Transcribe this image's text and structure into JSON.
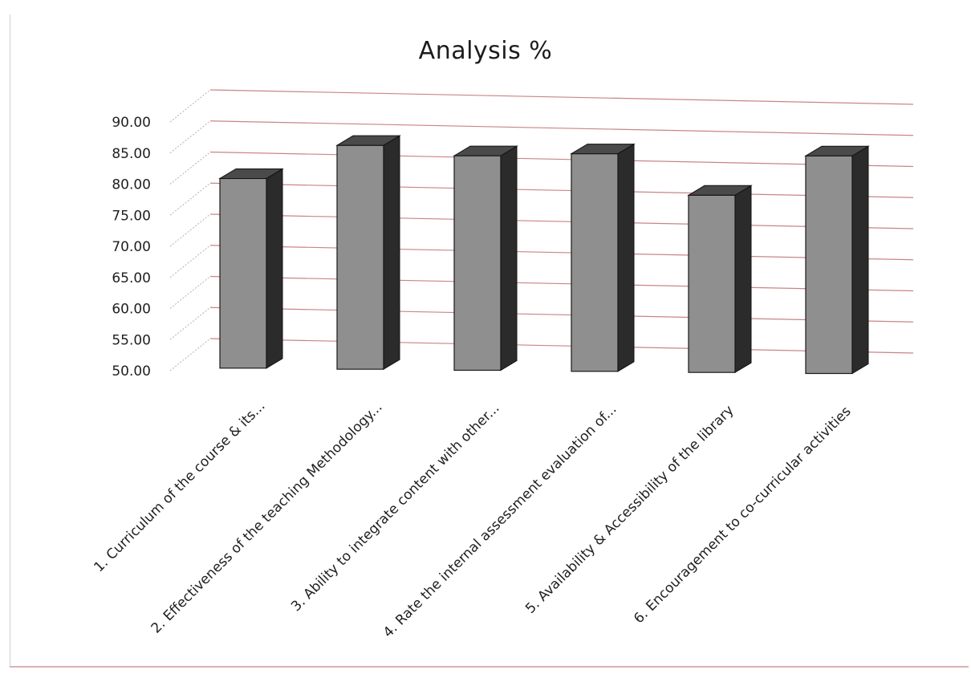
{
  "chart_data": {
    "type": "bar",
    "title": "Analysis  %",
    "xlabel": "",
    "ylabel": "",
    "ylim": [
      50,
      90
    ],
    "yticks": [
      "50.00",
      "55.00",
      "60.00",
      "65.00",
      "70.00",
      "75.00",
      "80.00",
      "85.00",
      "90.00"
    ],
    "categories": [
      "1. Curriculum of the course & its...",
      "2. Effectiveness of the teaching Methodology...",
      "3. Ability to integrate content with other...",
      "4. Rate the internal assessment evaluation of...",
      "5. Availability & Accessibility of the library",
      "6. Encouragement to co-curricular activities"
    ],
    "values": [
      80.5,
      86.0,
      84.5,
      85.0,
      78.5,
      85.0
    ],
    "grid": true,
    "legend": "none",
    "colors": {
      "bar_front": "#8f8f8f",
      "bar_side": "#2b2b2b",
      "bar_top": "#4a4a4a",
      "gridline": "#c98585"
    }
  }
}
